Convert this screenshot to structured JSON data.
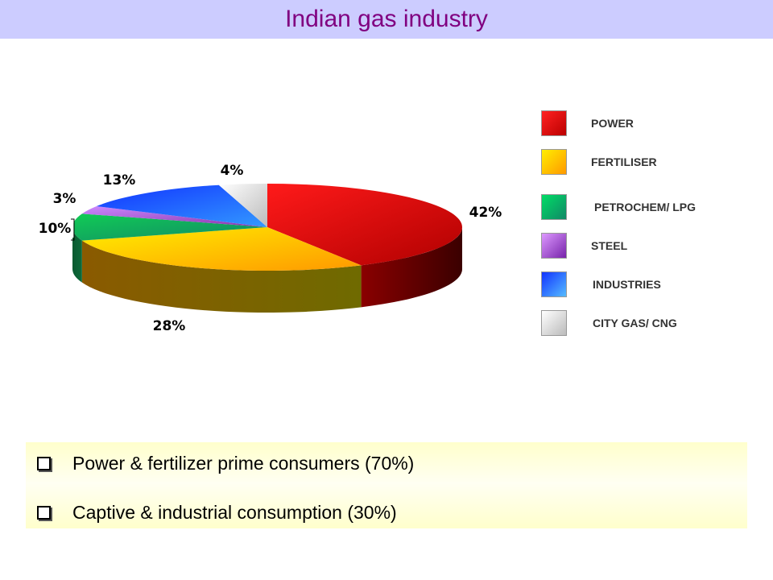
{
  "header": {
    "title": "Indian gas industry"
  },
  "chart_data": {
    "type": "pie",
    "title": "",
    "slices": [
      {
        "label": "POWER",
        "value": 42,
        "display": "42%",
        "color": "#e00000"
      },
      {
        "label": "FERTILISER",
        "value": 28,
        "display": "28%",
        "color": "#ffcc00"
      },
      {
        "label": "PETROCHEM/ LPG",
        "value": 10,
        "display": "10%",
        "color": "#22aa55"
      },
      {
        "label": "STEEL",
        "value": 3,
        "display": "3%",
        "color": "#aa55dd"
      },
      {
        "label": "INDUSTRIES",
        "value": 13,
        "display": "13%",
        "color": "#2255ff"
      },
      {
        "label": "CITY GAS/ CNG",
        "value": 4,
        "display": "4%",
        "color": "#dddddd"
      }
    ],
    "legend_position": "right"
  },
  "bullets": [
    {
      "text": "Power & fertilizer prime consumers (70%)"
    },
    {
      "text": "Captive & industrial consumption (30%)"
    }
  ]
}
